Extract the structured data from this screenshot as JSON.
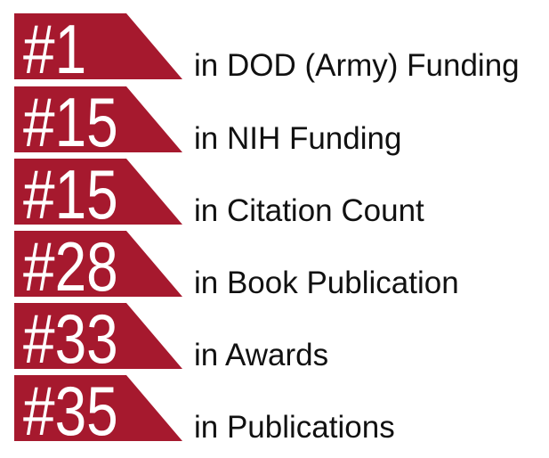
{
  "items": [
    {
      "rank": "#1",
      "label": "in DOD (Army) Funding"
    },
    {
      "rank": "#15",
      "label": "in NIH Funding"
    },
    {
      "rank": "#15",
      "label": "in Citation Count"
    },
    {
      "rank": "#28",
      "label": "in Book Publication"
    },
    {
      "rank": "#33",
      "label": "in Awards"
    },
    {
      "rank": "#35",
      "label": "in Publications"
    }
  ]
}
